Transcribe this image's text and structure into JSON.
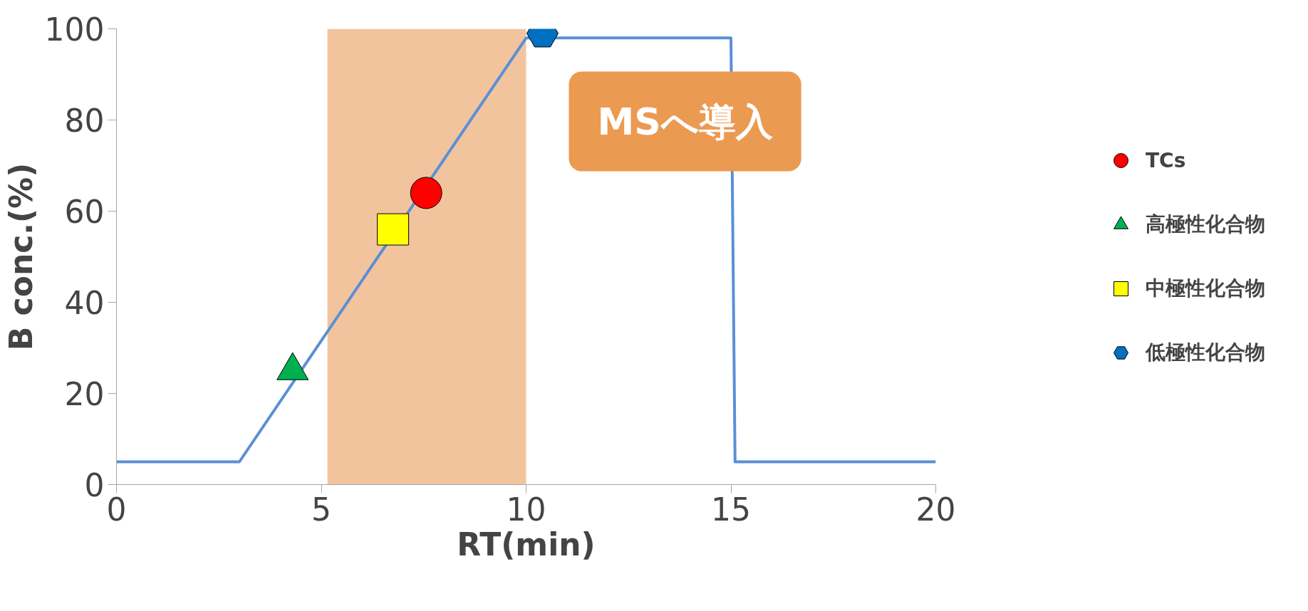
{
  "chart_data": {
    "type": "line",
    "xlabel": "RT(min)",
    "ylabel": "B conc.(%)",
    "xlim": [
      0,
      20
    ],
    "xticks": [
      0,
      5,
      10,
      15,
      20
    ],
    "ylim": [
      0,
      100
    ],
    "yticks": [
      0,
      20,
      40,
      60,
      80,
      100
    ],
    "grid": false,
    "legend": "right",
    "bands": [
      {
        "axis": "x",
        "from": 5.15,
        "to": 10,
        "label": "MSへ導入",
        "color": "#f2c49e"
      }
    ],
    "series": [
      {
        "color": "#5b8fd6",
        "x": [
          0,
          3,
          10,
          15,
          15.1,
          20
        ],
        "values": [
          5,
          5,
          98,
          98,
          5,
          5
        ]
      },
      {
        "type": "scatter",
        "name": "TCs",
        "color": "#ff0000",
        "marker": "circle",
        "x": [
          7.56
        ],
        "values": [
          64
        ]
      },
      {
        "type": "scatter",
        "name": "高極性化合物",
        "color": "#00b050",
        "marker": "triangle",
        "x": [
          4.3
        ],
        "values": [
          25
        ]
      },
      {
        "type": "scatter",
        "name": "中極性化合物",
        "color": "#ffff00",
        "marker": "square",
        "x": [
          6.75
        ],
        "values": [
          56
        ]
      },
      {
        "type": "scatter",
        "name": "低極性化合物",
        "color": "#0070c0",
        "x": [
          10.4
        ],
        "values": [
          99
        ]
      }
    ]
  }
}
